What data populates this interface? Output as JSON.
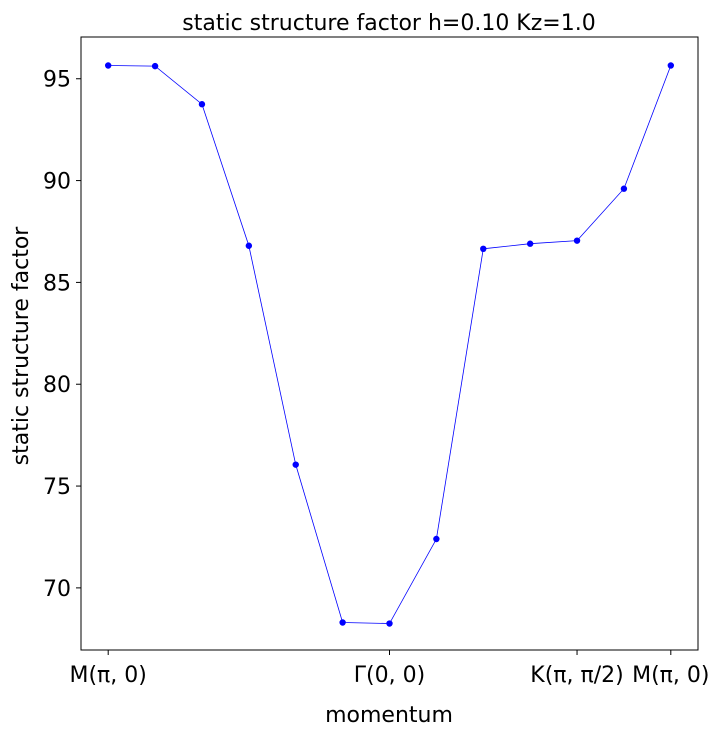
{
  "chart_data": {
    "type": "line",
    "title": "static structure factor h=0.10 Kz=1.0",
    "xlabel": "momentum",
    "ylabel": "static structure factor",
    "x": [
      0,
      1,
      2,
      3,
      4,
      5,
      6,
      7,
      8,
      9,
      10,
      11,
      12
    ],
    "series": [
      {
        "values": [
          95.65,
          95.62,
          93.75,
          86.8,
          76.05,
          68.3,
          68.25,
          72.4,
          86.65,
          86.9,
          87.05,
          89.6,
          95.65
        ],
        "color": "#0000ff",
        "marker": "circle"
      }
    ],
    "xlim": [
      -0.58,
      12.58
    ],
    "ylim": [
      66.95,
      97.05
    ],
    "yticks": [
      70,
      75,
      80,
      85,
      90,
      95
    ],
    "xticks": [
      {
        "x": 0,
        "label": "M(π, 0)"
      },
      {
        "x": 6,
        "label": "Γ(0, 0)"
      },
      {
        "x": 10,
        "label": "K(π, π/2)"
      },
      {
        "x": 12,
        "label": "M(π, 0)"
      }
    ],
    "grid": false
  }
}
